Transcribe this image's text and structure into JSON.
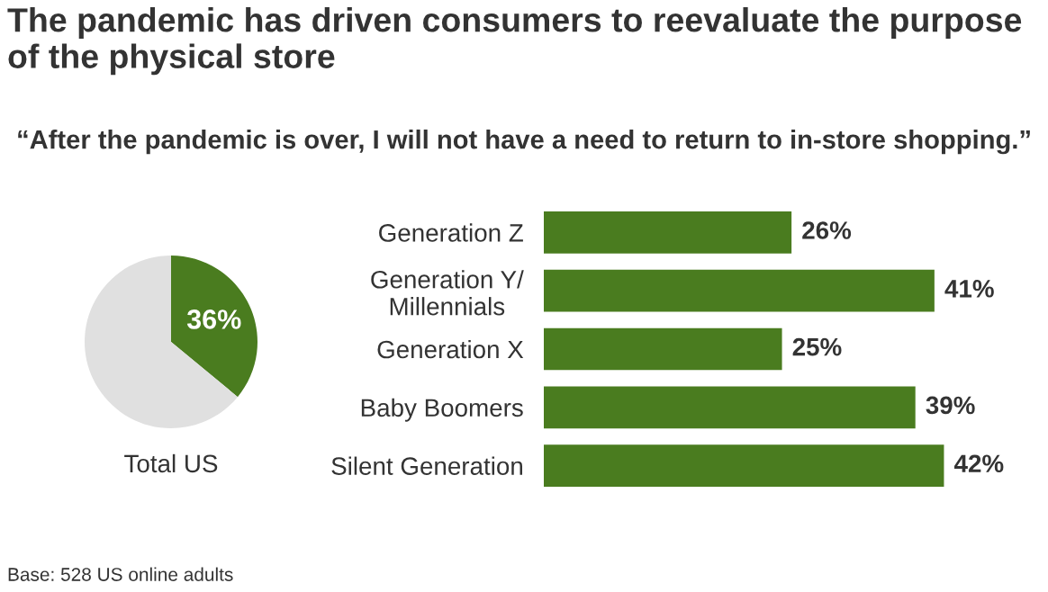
{
  "chart_data": [
    {
      "type": "pie",
      "title": "The pandemic has driven consumers to reevaluate the purpose of the physical store",
      "subtitle": "“After the pandemic is over, I will not have a need to return to in-store shopping.”",
      "xlabel": "Total US",
      "categories": [
        null,
        null
      ],
      "values": [
        36,
        64
      ],
      "colors": [
        "#4a7c1f",
        "#e0e0e0"
      ],
      "value_labels": [
        "36%",
        null
      ],
      "annotations": [
        "Base: 528 US online adults"
      ]
    },
    {
      "type": "bar",
      "orientation": "horizontal",
      "categories": [
        "Generation Z",
        "Generation Y/\nMillennials",
        "Generation X",
        "Baby Boomers",
        "Silent Generation"
      ],
      "values": [
        26,
        41,
        25,
        39,
        42
      ],
      "color": "#4a7c1f",
      "value_labels": [
        "26%",
        "41%",
        "25%",
        "39%",
        "42%"
      ]
    }
  ]
}
